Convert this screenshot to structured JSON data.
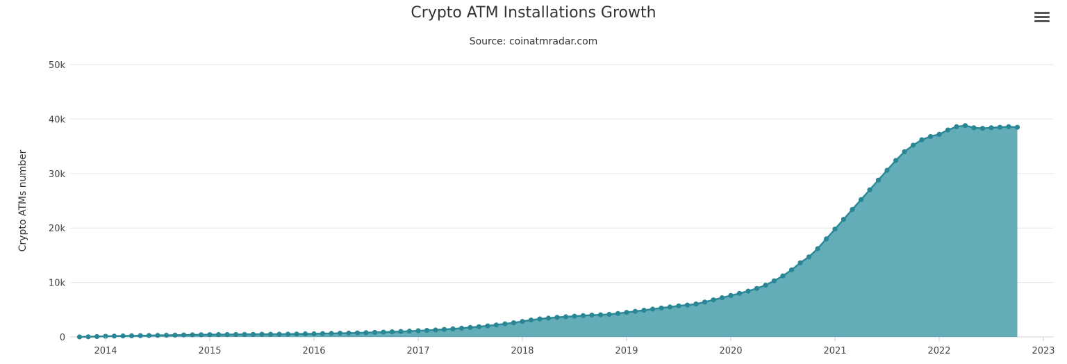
{
  "menu": {
    "icon": "hamburger-menu-icon"
  },
  "chart_data": {
    "type": "area",
    "title": "Crypto ATM Installations Growth",
    "subtitle": "Source: coinatmradar.com",
    "xlabel": "",
    "ylabel": "Crypto ATMs number",
    "ylim": [
      0,
      50000
    ],
    "yticks": [
      0,
      10000,
      20000,
      30000,
      40000,
      50000
    ],
    "ytick_labels": [
      "0",
      "10k",
      "20k",
      "30k",
      "40k",
      "50k"
    ],
    "xlim": [
      2013.75,
      2023.0
    ],
    "xticks": [
      2014,
      2015,
      2016,
      2017,
      2018,
      2019,
      2020,
      2021,
      2022,
      2023
    ],
    "xtick_labels": [
      "2014",
      "2015",
      "2016",
      "2017",
      "2018",
      "2019",
      "2020",
      "2021",
      "2022",
      "2023"
    ],
    "grid": true,
    "legend": "none",
    "colors": {
      "fill": "#5ba9b4",
      "line": "#2b8a99",
      "marker": "#2a8594"
    },
    "series": [
      {
        "name": "Crypto ATMs",
        "monthly_start": "2013-10",
        "values": [
          5,
          25,
          70,
          110,
          150,
          180,
          200,
          230,
          260,
          280,
          300,
          330,
          360,
          380,
          400,
          420,
          430,
          440,
          450,
          460,
          470,
          480,
          490,
          500,
          510,
          530,
          560,
          580,
          610,
          640,
          670,
          700,
          740,
          780,
          830,
          880,
          940,
          1000,
          1060,
          1130,
          1200,
          1280,
          1380,
          1480,
          1600,
          1730,
          1880,
          2030,
          2200,
          2400,
          2600,
          2850,
          3100,
          3300,
          3450,
          3600,
          3700,
          3800,
          3900,
          4000,
          4050,
          4150,
          4300,
          4500,
          4700,
          4900,
          5100,
          5300,
          5500,
          5700,
          5850,
          6050,
          6400,
          6800,
          7200,
          7600,
          8000,
          8400,
          8900,
          9500,
          10300,
          11200,
          12300,
          13600,
          14700,
          16200,
          18000,
          19800,
          21600,
          23400,
          25200,
          27000,
          28800,
          30600,
          32400,
          34000,
          35200,
          36200,
          36800,
          37200,
          38000,
          38600,
          38800,
          38400,
          38300,
          38400,
          38500,
          38600,
          38500
        ]
      }
    ]
  }
}
